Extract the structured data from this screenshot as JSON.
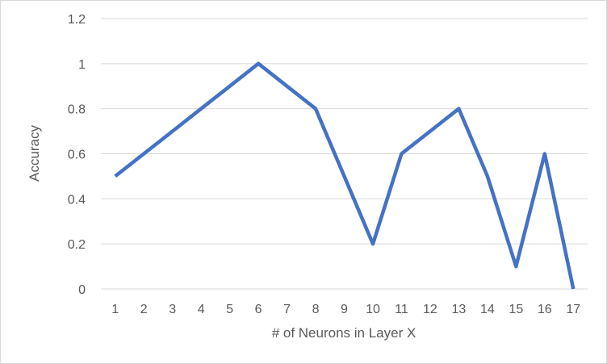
{
  "chart_data": {
    "type": "line",
    "xlabel": "# of Neurons in Layer X",
    "ylabel": "Accuracy",
    "categories": [
      "1",
      "2",
      "3",
      "4",
      "5",
      "6",
      "7",
      "8",
      "9",
      "10",
      "11",
      "12",
      "13",
      "14",
      "15",
      "16",
      "17"
    ],
    "series": [
      {
        "values": [
          0.5,
          0.6,
          0.7,
          0.8,
          0.9,
          1.0,
          0.9,
          0.8,
          0.5,
          0.2,
          0.6,
          0.7,
          0.8,
          0.5,
          0.1,
          0.6,
          0.0
        ],
        "color": "#4472C4"
      }
    ],
    "ylim": [
      0,
      1.2
    ],
    "yticks": [
      "0",
      "0.2",
      "0.4",
      "0.6",
      "0.8",
      "1",
      "1.2"
    ],
    "grid": true,
    "gridColor": "#d9d9d9"
  }
}
